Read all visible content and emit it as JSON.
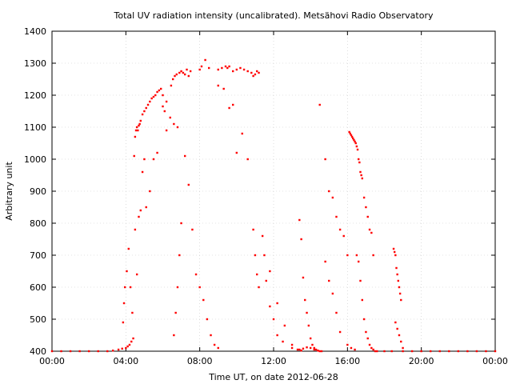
{
  "chart_data": {
    "type": "scatter",
    "title": "Total UV radiation intensity (uncalibrated). Metsähovi Radio Observatory",
    "xlabel": "Time UT, on date 2012-06-28",
    "ylabel": "Arbitrary unit",
    "xlim_hours": [
      0,
      24
    ],
    "ylim": [
      400,
      1400
    ],
    "x_tick_labels": [
      "00:00",
      "04:00",
      "08:00",
      "12:00",
      "16:00",
      "20:00",
      "00:00"
    ],
    "y_tick_labels": [
      "400",
      "500",
      "600",
      "700",
      "800",
      "900",
      "1000",
      "1100",
      "1200",
      "1300",
      "1400"
    ],
    "grid": true,
    "marker_color": "#ff0000",
    "series": [
      {
        "x_hours": [
          0.0,
          0.5,
          1.0,
          1.5,
          2.0,
          2.5,
          3.0,
          3.3,
          3.6,
          3.8,
          4.0,
          4.1,
          4.2,
          4.3,
          4.4,
          3.85,
          3.9,
          3.95,
          4.05,
          4.15,
          4.25,
          4.35,
          4.45,
          4.5,
          4.55,
          4.6,
          4.65,
          4.7,
          4.75,
          4.8,
          4.9,
          5.0,
          5.1,
          5.2,
          5.3,
          5.4,
          5.5,
          5.6,
          5.7,
          5.8,
          5.9,
          6.0,
          6.1,
          6.2,
          4.5,
          4.6,
          4.7,
          4.8,
          4.9,
          5.0,
          5.1,
          5.3,
          5.5,
          5.7,
          6.0,
          6.2,
          6.4,
          6.6,
          6.8,
          6.45,
          6.55,
          6.65,
          6.75,
          6.9,
          7.0,
          7.1,
          7.2,
          7.3,
          7.4,
          7.5,
          6.6,
          6.7,
          6.8,
          6.9,
          7.0,
          7.2,
          7.4,
          7.6,
          7.8,
          8.0,
          8.2,
          8.4,
          8.6,
          8.8,
          9.0,
          8.0,
          8.1,
          8.3,
          8.5,
          9.0,
          9.2,
          9.4,
          9.5,
          9.6,
          9.8,
          10.0,
          10.2,
          10.4,
          10.6,
          9.0,
          9.3,
          9.6,
          9.8,
          10.0,
          10.3,
          10.6,
          10.9,
          11.0,
          11.1,
          11.2,
          10.8,
          10.9,
          11.0,
          11.1,
          11.2,
          11.4,
          11.6,
          11.8,
          12.0,
          12.2,
          12.5,
          13.0,
          13.3,
          13.5,
          11.5,
          11.8,
          12.2,
          12.6,
          13.0,
          13.4,
          13.6,
          13.8,
          14.0,
          14.2,
          14.4,
          13.4,
          13.5,
          13.6,
          13.7,
          13.8,
          13.9,
          14.0,
          14.1,
          14.2,
          14.3,
          14.4,
          14.5,
          14.6,
          14.5,
          14.8,
          15.0,
          15.2,
          15.4,
          15.6,
          15.8,
          16.0,
          14.8,
          15.0,
          15.2,
          15.4,
          15.6,
          16.0,
          16.2,
          16.4,
          16.1,
          16.15,
          16.2,
          16.25,
          16.3,
          16.35,
          16.4,
          16.45,
          16.5,
          16.55,
          16.6,
          16.65,
          16.7,
          16.75,
          16.8,
          16.5,
          16.6,
          16.7,
          16.8,
          16.9,
          17.0,
          17.1,
          17.2,
          17.3,
          17.4,
          17.5,
          16.9,
          17.0,
          17.1,
          17.2,
          17.3,
          17.4,
          18.5,
          18.55,
          18.6,
          18.65,
          18.7,
          18.75,
          18.8,
          18.85,
          18.9,
          18.6,
          18.7,
          18.8,
          18.9,
          19.0,
          17.6,
          18.0,
          18.4,
          19.0,
          19.5,
          20.0,
          20.5,
          21.0,
          21.5,
          22.0,
          22.5,
          23.0,
          23.5,
          24.0
        ],
        "values": [
          400,
          400,
          400,
          400,
          400,
          400,
          400,
          402,
          405,
          408,
          410,
          415,
          420,
          430,
          440,
          490,
          550,
          600,
          650,
          720,
          600,
          520,
          1010,
          1070,
          1090,
          1100,
          1090,
          1105,
          1110,
          1120,
          1140,
          1150,
          1160,
          1170,
          1180,
          1190,
          1195,
          1200,
          1210,
          1215,
          1220,
          1165,
          1150,
          1090,
          780,
          640,
          820,
          840,
          960,
          1000,
          850,
          900,
          1000,
          1020,
          1200,
          1180,
          1130,
          1110,
          1100,
          1230,
          1250,
          1260,
          1265,
          1270,
          1275,
          1270,
          1265,
          1280,
          1260,
          1275,
          450,
          520,
          600,
          700,
          800,
          1010,
          920,
          780,
          640,
          600,
          560,
          500,
          450,
          420,
          410,
          1280,
          1290,
          1310,
          1285,
          1280,
          1285,
          1290,
          1285,
          1290,
          1275,
          1280,
          1285,
          1280,
          1275,
          1230,
          1220,
          1160,
          1170,
          1020,
          1080,
          1000,
          780,
          700,
          640,
          600,
          1270,
          1260,
          1265,
          1275,
          1270,
          760,
          620,
          540,
          500,
          450,
          430,
          410,
          405,
          402,
          700,
          650,
          550,
          480,
          420,
          405,
          408,
          412,
          410,
          405,
          402,
          810,
          750,
          630,
          560,
          520,
          480,
          440,
          420,
          410,
          405,
          402,
          400,
          400,
          1170,
          1000,
          900,
          880,
          820,
          780,
          760,
          700,
          680,
          620,
          580,
          520,
          460,
          420,
          410,
          405,
          1085,
          1080,
          1075,
          1070,
          1065,
          1060,
          1055,
          1050,
          1040,
          1030,
          1000,
          990,
          960,
          950,
          940,
          700,
          680,
          620,
          560,
          500,
          460,
          440,
          420,
          410,
          405,
          400,
          880,
          850,
          820,
          780,
          770,
          700,
          720,
          710,
          700,
          660,
          640,
          620,
          600,
          580,
          560,
          490,
          470,
          450,
          430,
          410,
          400,
          400,
          400,
          400,
          400,
          400,
          400,
          400,
          400,
          400,
          400,
          400,
          400,
          400
        ]
      }
    ]
  }
}
